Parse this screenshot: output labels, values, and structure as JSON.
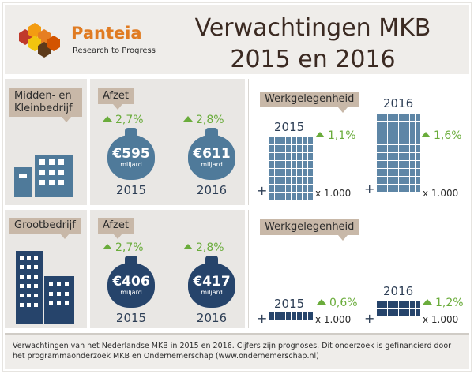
{
  "header": {
    "brand": "Panteia",
    "brand_sub": "Research to Progress",
    "title_line1": "Verwachtingen MKB",
    "title_line2": "2015 en 2016"
  },
  "mkb": {
    "label": "Midden- en Kleinbedrijf",
    "afzet_label": "Afzet",
    "afzet": [
      {
        "pct": "2,7%",
        "amount": "€595",
        "unit": "miljard",
        "year": "2015"
      },
      {
        "pct": "2,8%",
        "amount": "€611",
        "unit": "miljard",
        "year": "2016"
      }
    ],
    "werk_label": "Werkgelegenheid",
    "werk": [
      {
        "year": "2015",
        "pct": "1,1%",
        "plus": "+",
        "mult": "x 1.000"
      },
      {
        "year": "2016",
        "pct": "1,6%",
        "plus": "+",
        "mult": "x 1.000"
      }
    ]
  },
  "gb": {
    "label": "Grootbedrijf",
    "afzet_label": "Afzet",
    "afzet": [
      {
        "pct": "2,7%",
        "amount": "€406",
        "unit": "miljard",
        "year": "2015"
      },
      {
        "pct": "2,8%",
        "amount": "€417",
        "unit": "miljard",
        "year": "2016"
      }
    ],
    "werk_label": "Werkgelegenheid",
    "werk": [
      {
        "year": "2015",
        "pct": "0,6%",
        "plus": "+",
        "mult": "x 1.000"
      },
      {
        "year": "2016",
        "pct": "1,2%",
        "plus": "+",
        "mult": "x 1.000"
      }
    ]
  },
  "footer": {
    "text": "Verwachtingen van het Nederlandse MKB in 2015 en 2016. Cijfers zijn prognoses. Dit onderzoek is gefinancierd door het programmaonderzoek MKB en Ondernemerschap (www.ondernemerschap.nl)"
  },
  "colors": {
    "accent_orange": "#e07b22",
    "growth_green": "#6aac3b",
    "mkb_blue": "#4f7a9a",
    "gb_navy": "#26446b",
    "tag_beige": "#c8b8a8"
  }
}
